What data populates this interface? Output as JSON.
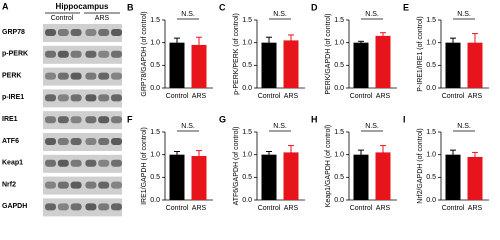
{
  "blot": {
    "panel": "A",
    "title": "Hippocampus",
    "groups": [
      "Control",
      "ARS"
    ],
    "rows": [
      "GRP78",
      "p-PERK",
      "PERK",
      "p-IRE1",
      "IRE1",
      "ATF6",
      "Keap1",
      "Nrf2",
      "GAPDH"
    ]
  },
  "chart_data": [
    {
      "type": "bar",
      "panel": "B",
      "ylabel": "GRP78/GAPDH (of control)",
      "categories": [
        "Control",
        "ARS"
      ],
      "values": [
        1.0,
        0.95
      ],
      "errors": [
        0.1,
        0.17
      ],
      "colors": [
        "#000000",
        "#e8141c"
      ],
      "annotation": "N.S.",
      "ylim": [
        0,
        1.5
      ],
      "yticks": [
        {
          "value": 0,
          "label": "0.0"
        },
        0.5,
        {
          "value": 1,
          "label": "1.0"
        },
        1.5
      ]
    },
    {
      "type": "bar",
      "panel": "C",
      "ylabel": "p-PERK/PERK (of control)",
      "categories": [
        "Control",
        "ARS"
      ],
      "values": [
        1.0,
        1.05
      ],
      "errors": [
        0.12,
        0.12
      ],
      "colors": [
        "#000000",
        "#e8141c"
      ],
      "annotation": "N.S.",
      "ylim": [
        0,
        1.5
      ],
      "yticks": [
        {
          "value": 0,
          "label": "0.0"
        },
        0.5,
        {
          "value": 1,
          "label": "1.0"
        },
        1.5
      ]
    },
    {
      "type": "bar",
      "panel": "D",
      "ylabel": "PERK/GAPDH (of control)",
      "categories": [
        "Control",
        "ARS"
      ],
      "values": [
        1.0,
        1.15
      ],
      "errors": [
        0.03,
        0.07
      ],
      "colors": [
        "#000000",
        "#e8141c"
      ],
      "annotation": "N.S.",
      "ylim": [
        0,
        1.5
      ],
      "yticks": [
        {
          "value": 0,
          "label": "0.0"
        },
        0.5,
        {
          "value": 1,
          "label": "1.0"
        },
        1.5
      ]
    },
    {
      "type": "bar",
      "panel": "E",
      "ylabel": "P-IRE1/IRE1 (of control)",
      "categories": [
        "Control",
        "ARS"
      ],
      "values": [
        1.0,
        1.0
      ],
      "errors": [
        0.1,
        0.2
      ],
      "colors": [
        "#000000",
        "#e8141c"
      ],
      "annotation": "N.S.",
      "ylim": [
        0,
        1.5
      ],
      "yticks": [
        {
          "value": 0,
          "label": "0.0"
        },
        0.5,
        {
          "value": 1,
          "label": "1.0"
        },
        1.5
      ]
    },
    {
      "type": "bar",
      "panel": "F",
      "ylabel": "IRE1/GAPDH (of control)",
      "categories": [
        "Control",
        "ARS"
      ],
      "values": [
        1.0,
        0.97
      ],
      "errors": [
        0.07,
        0.12
      ],
      "colors": [
        "#000000",
        "#e8141c"
      ],
      "annotation": "N.S.",
      "ylim": [
        0,
        1.5
      ],
      "yticks": [
        {
          "value": 0,
          "label": "0.0"
        },
        0.5,
        {
          "value": 1,
          "label": "1.0"
        },
        1.5
      ]
    },
    {
      "type": "bar",
      "panel": "G",
      "ylabel": "ATF6/GAPDH (of control)",
      "categories": [
        "Control",
        "ARS"
      ],
      "values": [
        1.0,
        1.05
      ],
      "errors": [
        0.07,
        0.15
      ],
      "colors": [
        "#000000",
        "#e8141c"
      ],
      "annotation": "N.S.",
      "ylim": [
        0,
        1.5
      ],
      "yticks": [
        {
          "value": 0,
          "label": "0.0"
        },
        0.5,
        {
          "value": 1,
          "label": "1.0"
        },
        1.5
      ]
    },
    {
      "type": "bar",
      "panel": "H",
      "ylabel": "Keap1/GAPDH (of control)",
      "categories": [
        "Control",
        "ARS"
      ],
      "values": [
        1.0,
        1.05
      ],
      "errors": [
        0.1,
        0.15
      ],
      "colors": [
        "#000000",
        "#e8141c"
      ],
      "annotation": "N.S.",
      "ylim": [
        0,
        1.5
      ],
      "yticks": [
        {
          "value": 0,
          "label": "0.0"
        },
        0.5,
        {
          "value": 1,
          "label": "1.0"
        },
        1.5
      ]
    },
    {
      "type": "bar",
      "panel": "I",
      "ylabel": "Nrf2/GAPDH (of control)",
      "categories": [
        "Control",
        "ARS"
      ],
      "values": [
        1.0,
        0.95
      ],
      "errors": [
        0.1,
        0.1
      ],
      "colors": [
        "#000000",
        "#e8141c"
      ],
      "annotation": "N.S.",
      "ylim": [
        0,
        1.5
      ],
      "yticks": [
        {
          "value": 0,
          "label": "0.0"
        },
        0.5,
        {
          "value": 1,
          "label": "1.0"
        },
        1.5
      ]
    }
  ]
}
